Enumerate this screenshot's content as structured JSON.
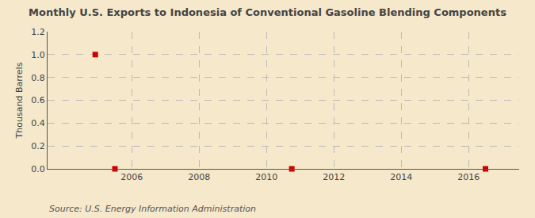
{
  "chart_data": {
    "type": "scatter",
    "title": "Monthly U.S. Exports to Indonesia of Conventional Gasoline Blending Components",
    "ylabel": "Thousand Barrels",
    "annotations": [
      "Source: U.S. Energy Information Administration"
    ],
    "x": [
      2004.917,
      2005.5,
      2010.75,
      2016.5
    ],
    "values": [
      1.0,
      0.0,
      0.0,
      0.0
    ],
    "color": "#cc0000",
    "marker": "square",
    "xlim": [
      2003.5,
      2017.5
    ],
    "xticks": [
      2006,
      2008,
      2010,
      2012,
      2014,
      2016
    ],
    "ylim": [
      0.0,
      1.2
    ],
    "yticks": [
      {
        "value": 0.0,
        "label": "0.0"
      },
      0.2,
      0.4,
      0.6,
      0.8,
      {
        "value": 1.0,
        "label": "1.0"
      },
      1.2
    ],
    "grid": true
  }
}
